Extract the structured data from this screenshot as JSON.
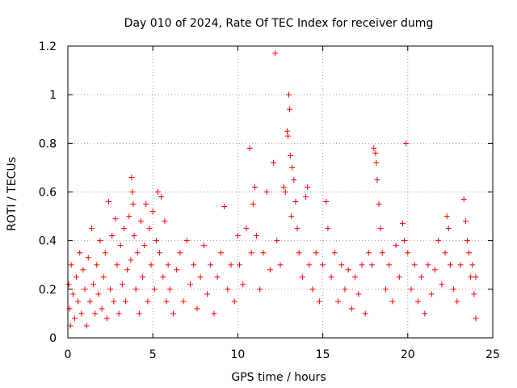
{
  "chart_data": {
    "type": "scatter",
    "title": "Day 010 of 2024, Rate Of TEC Index for receiver dumg",
    "xlabel": "GPS time / hours",
    "ylabel": "ROTI / TECUs",
    "xlim": [
      0,
      25
    ],
    "ylim": [
      0,
      1.2
    ],
    "x_ticks": [
      0,
      5,
      10,
      15,
      20,
      25
    ],
    "x_tick_labels": [
      "0",
      "5",
      "10",
      "15",
      "20",
      "25"
    ],
    "y_ticks": [
      0,
      0.2,
      0.4,
      0.6,
      0.8,
      1.0,
      1.2
    ],
    "y_tick_labels": [
      "0",
      "0.2",
      "0.4",
      "0.6",
      "0.8",
      "1",
      "1.2"
    ],
    "grid": true,
    "marker": "+",
    "marker_color": "#ff0000",
    "series": [
      {
        "name": "ROTI",
        "points": [
          [
            0.05,
            0.22
          ],
          [
            0.1,
            0.12
          ],
          [
            0.15,
            0.05
          ],
          [
            0.2,
            0.3
          ],
          [
            0.3,
            0.18
          ],
          [
            0.4,
            0.08
          ],
          [
            0.5,
            0.25
          ],
          [
            0.6,
            0.15
          ],
          [
            0.7,
            0.35
          ],
          [
            0.8,
            0.1
          ],
          [
            0.9,
            0.28
          ],
          [
            1.0,
            0.2
          ],
          [
            1.1,
            0.05
          ],
          [
            1.2,
            0.33
          ],
          [
            1.3,
            0.15
          ],
          [
            1.4,
            0.45
          ],
          [
            1.5,
            0.22
          ],
          [
            1.6,
            0.1
          ],
          [
            1.7,
            0.3
          ],
          [
            1.8,
            0.18
          ],
          [
            1.9,
            0.4
          ],
          [
            2.0,
            0.12
          ],
          [
            2.1,
            0.25
          ],
          [
            2.2,
            0.35
          ],
          [
            2.3,
            0.08
          ],
          [
            2.4,
            0.56
          ],
          [
            2.5,
            0.2
          ],
          [
            2.6,
            0.42
          ],
          [
            2.7,
            0.15
          ],
          [
            2.8,
            0.49
          ],
          [
            2.9,
            0.3
          ],
          [
            3.0,
            0.1
          ],
          [
            3.1,
            0.38
          ],
          [
            3.2,
            0.22
          ],
          [
            3.3,
            0.45
          ],
          [
            3.4,
            0.15
          ],
          [
            3.5,
            0.28
          ],
          [
            3.6,
            0.5
          ],
          [
            3.7,
            0.32
          ],
          [
            3.75,
            0.66
          ],
          [
            3.8,
            0.6
          ],
          [
            3.85,
            0.55
          ],
          [
            3.9,
            0.42
          ],
          [
            4.0,
            0.2
          ],
          [
            4.1,
            0.35
          ],
          [
            4.2,
            0.1
          ],
          [
            4.3,
            0.48
          ],
          [
            4.4,
            0.25
          ],
          [
            4.5,
            0.38
          ],
          [
            4.6,
            0.55
          ],
          [
            4.7,
            0.15
          ],
          [
            4.8,
            0.45
          ],
          [
            4.9,
            0.3
          ],
          [
            5.0,
            0.52
          ],
          [
            5.1,
            0.2
          ],
          [
            5.2,
            0.4
          ],
          [
            5.3,
            0.6
          ],
          [
            5.4,
            0.35
          ],
          [
            5.5,
            0.58
          ],
          [
            5.6,
            0.25
          ],
          [
            5.7,
            0.48
          ],
          [
            5.8,
            0.15
          ],
          [
            5.9,
            0.3
          ],
          [
            6.0,
            0.2
          ],
          [
            6.2,
            0.1
          ],
          [
            6.4,
            0.28
          ],
          [
            6.6,
            0.35
          ],
          [
            6.8,
            0.15
          ],
          [
            7.0,
            0.4
          ],
          [
            7.2,
            0.22
          ],
          [
            7.4,
            0.3
          ],
          [
            7.6,
            0.12
          ],
          [
            7.8,
            0.25
          ],
          [
            8.0,
            0.38
          ],
          [
            8.2,
            0.18
          ],
          [
            8.4,
            0.3
          ],
          [
            8.6,
            0.1
          ],
          [
            8.8,
            0.25
          ],
          [
            9.0,
            0.35
          ],
          [
            9.2,
            0.54
          ],
          [
            9.4,
            0.2
          ],
          [
            9.6,
            0.3
          ],
          [
            9.8,
            0.15
          ],
          [
            10.0,
            0.42
          ],
          [
            10.1,
            0.3
          ],
          [
            10.3,
            0.22
          ],
          [
            10.5,
            0.45
          ],
          [
            10.7,
            0.78
          ],
          [
            10.8,
            0.35
          ],
          [
            10.9,
            0.55
          ],
          [
            11.0,
            0.62
          ],
          [
            11.1,
            0.42
          ],
          [
            11.3,
            0.2
          ],
          [
            11.5,
            0.35
          ],
          [
            11.7,
            0.6
          ],
          [
            11.9,
            0.28
          ],
          [
            12.1,
            0.72
          ],
          [
            12.2,
            1.17
          ],
          [
            12.3,
            0.4
          ],
          [
            12.5,
            0.3
          ],
          [
            12.7,
            0.62
          ],
          [
            12.8,
            0.6
          ],
          [
            12.9,
            0.85
          ],
          [
            12.95,
            0.83
          ],
          [
            13.0,
            1.0
          ],
          [
            13.05,
            0.94
          ],
          [
            13.1,
            0.75
          ],
          [
            13.15,
            0.5
          ],
          [
            13.2,
            0.7
          ],
          [
            13.3,
            0.65
          ],
          [
            13.4,
            0.56
          ],
          [
            13.5,
            0.45
          ],
          [
            13.6,
            0.35
          ],
          [
            13.8,
            0.25
          ],
          [
            14.0,
            0.58
          ],
          [
            14.1,
            0.62
          ],
          [
            14.2,
            0.3
          ],
          [
            14.4,
            0.2
          ],
          [
            14.6,
            0.35
          ],
          [
            14.8,
            0.15
          ],
          [
            15.0,
            0.3
          ],
          [
            15.2,
            0.56
          ],
          [
            15.3,
            0.45
          ],
          [
            15.5,
            0.25
          ],
          [
            15.7,
            0.35
          ],
          [
            15.9,
            0.15
          ],
          [
            16.1,
            0.3
          ],
          [
            16.3,
            0.2
          ],
          [
            16.5,
            0.28
          ],
          [
            16.7,
            0.12
          ],
          [
            16.9,
            0.25
          ],
          [
            17.1,
            0.18
          ],
          [
            17.3,
            0.3
          ],
          [
            17.5,
            0.1
          ],
          [
            17.7,
            0.35
          ],
          [
            17.9,
            0.3
          ],
          [
            18.0,
            0.78
          ],
          [
            18.1,
            0.76
          ],
          [
            18.15,
            0.72
          ],
          [
            18.2,
            0.65
          ],
          [
            18.3,
            0.55
          ],
          [
            18.4,
            0.45
          ],
          [
            18.5,
            0.35
          ],
          [
            18.7,
            0.2
          ],
          [
            18.9,
            0.3
          ],
          [
            19.1,
            0.15
          ],
          [
            19.3,
            0.38
          ],
          [
            19.5,
            0.25
          ],
          [
            19.7,
            0.47
          ],
          [
            19.8,
            0.4
          ],
          [
            19.9,
            0.8
          ],
          [
            20.0,
            0.35
          ],
          [
            20.2,
            0.2
          ],
          [
            20.4,
            0.3
          ],
          [
            20.6,
            0.15
          ],
          [
            20.8,
            0.25
          ],
          [
            21.0,
            0.1
          ],
          [
            21.2,
            0.3
          ],
          [
            21.4,
            0.18
          ],
          [
            21.6,
            0.28
          ],
          [
            21.8,
            0.4
          ],
          [
            22.0,
            0.22
          ],
          [
            22.2,
            0.35
          ],
          [
            22.3,
            0.5
          ],
          [
            22.4,
            0.45
          ],
          [
            22.5,
            0.3
          ],
          [
            22.7,
            0.2
          ],
          [
            22.9,
            0.15
          ],
          [
            23.1,
            0.3
          ],
          [
            23.3,
            0.57
          ],
          [
            23.4,
            0.48
          ],
          [
            23.5,
            0.4
          ],
          [
            23.6,
            0.35
          ],
          [
            23.7,
            0.25
          ],
          [
            23.8,
            0.3
          ],
          [
            23.9,
            0.18
          ],
          [
            24.0,
            0.25
          ],
          [
            24.0,
            0.08
          ]
        ]
      }
    ]
  }
}
